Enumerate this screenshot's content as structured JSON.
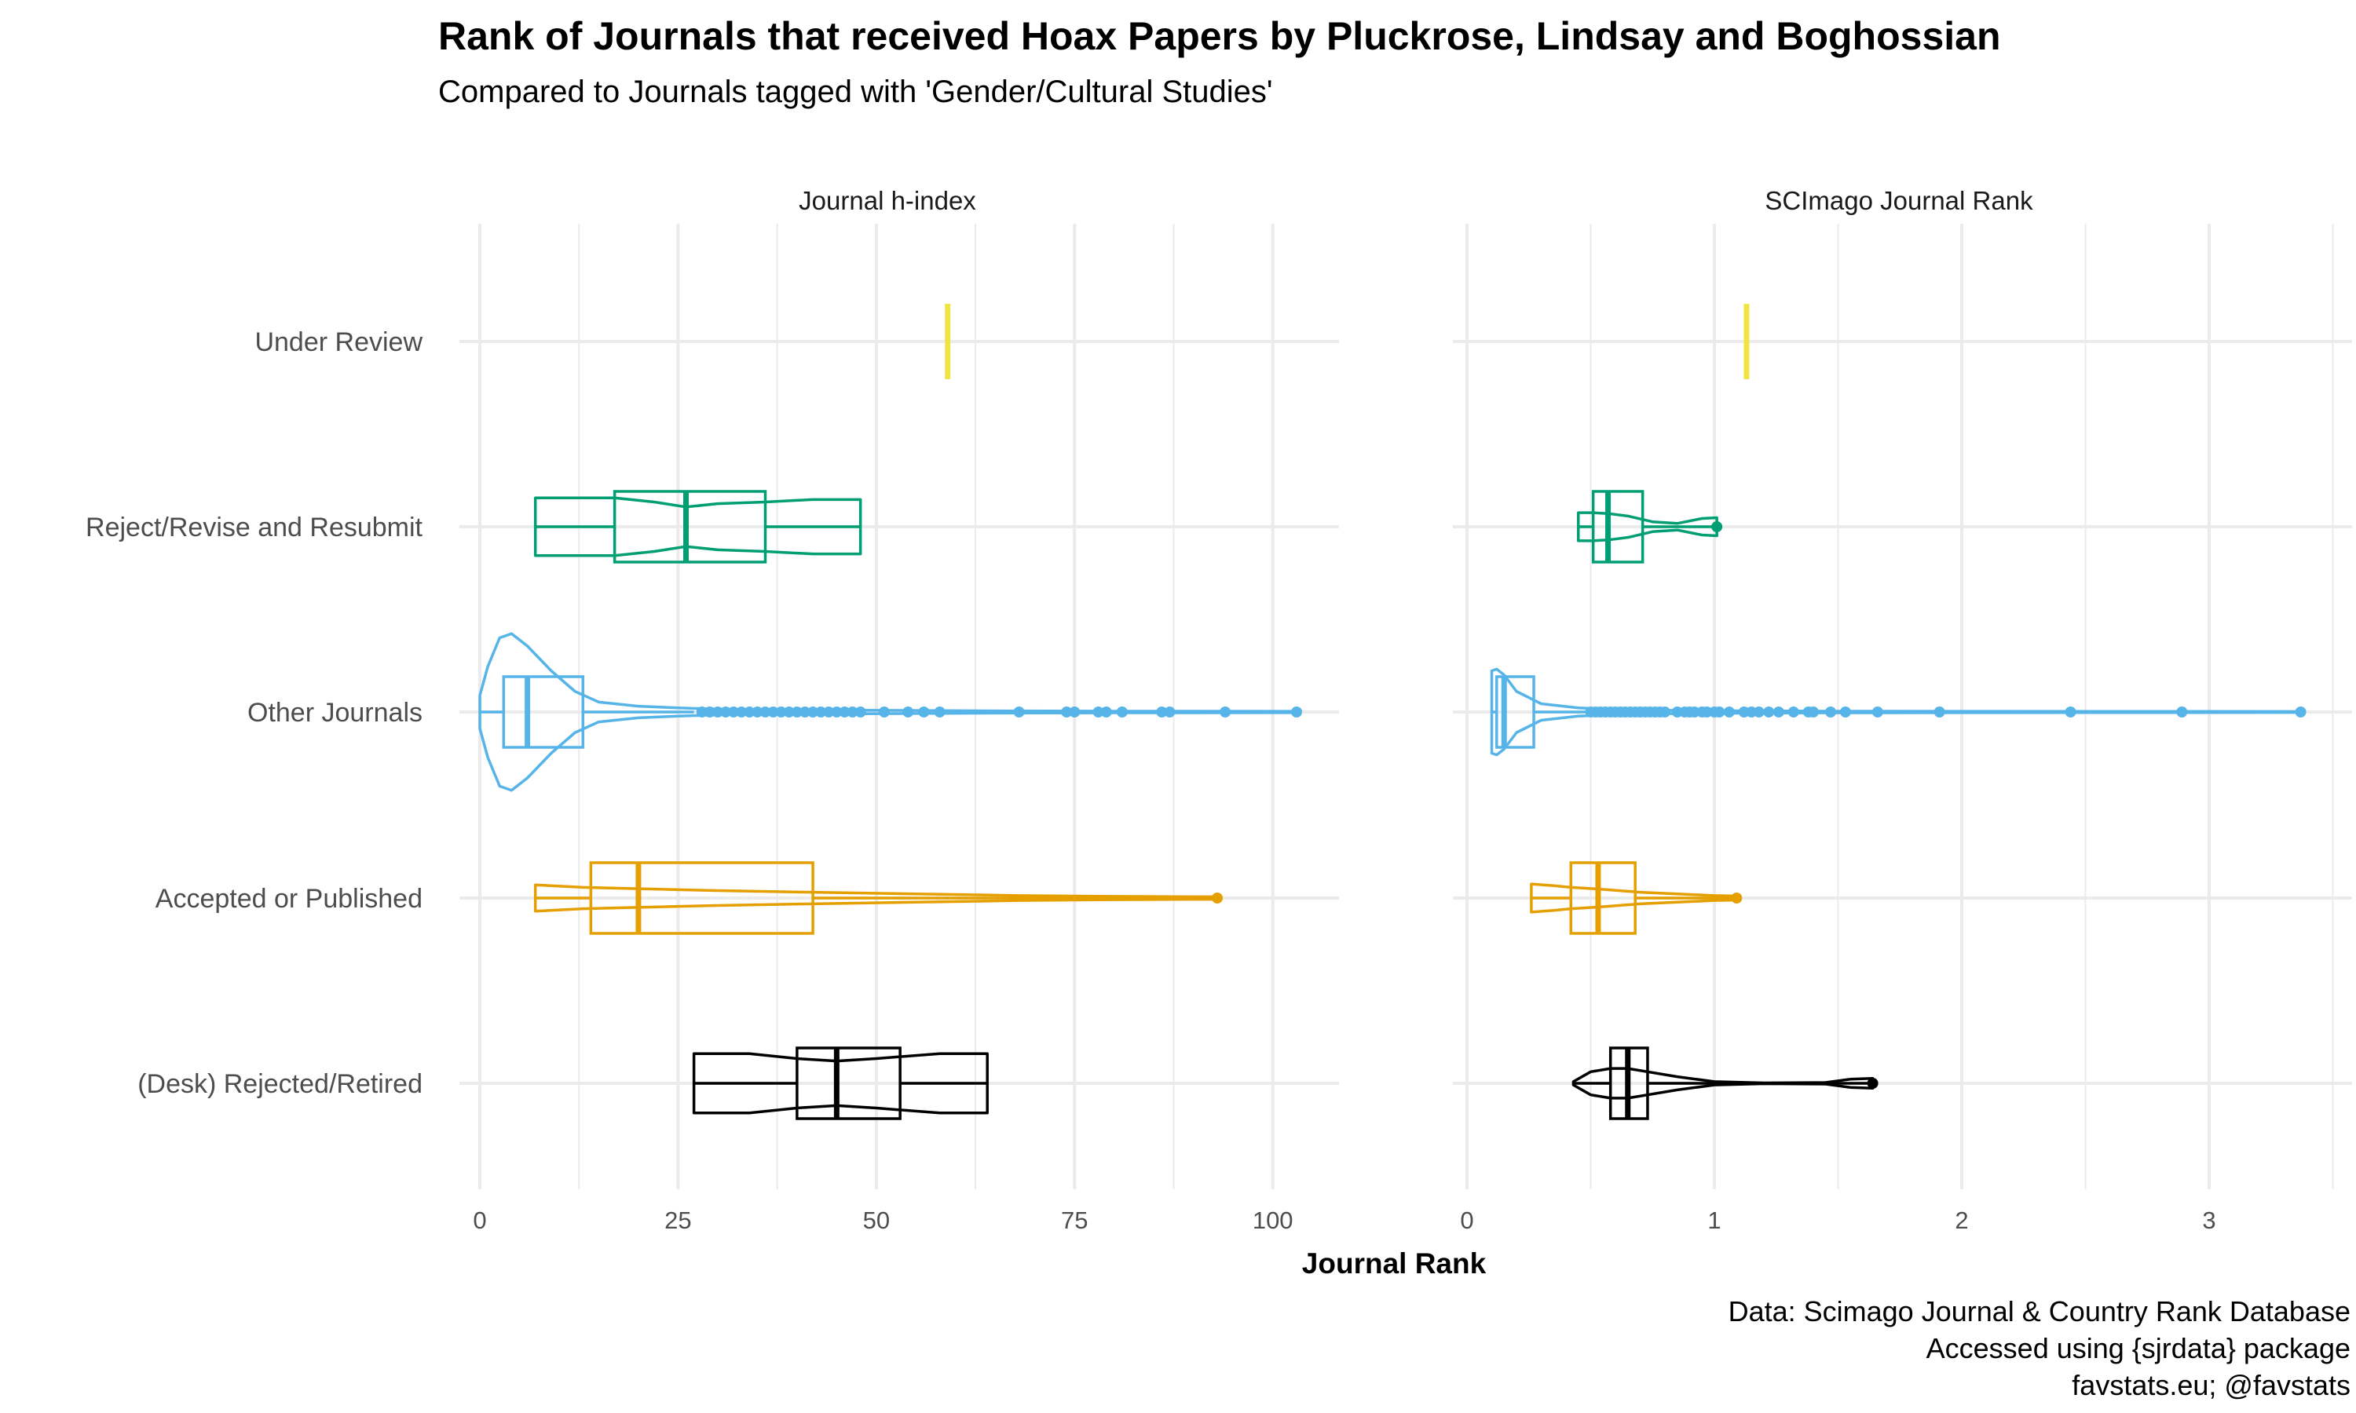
{
  "title": "Rank of Journals that received Hoax Papers by Pluckrose, Lindsay and Boghossian",
  "subtitle": "Compared to Journals tagged with 'Gender/Cultural Studies'",
  "xlabel": "Journal Rank",
  "caption": [
    "Data: Scimago Journal & Country Rank Database",
    "Accessed using {sjrdata} package",
    "favstats.eu; @favstats"
  ],
  "colors": {
    "Under Review": "#F0E442",
    "Reject/Revise and Resubmit": "#009E73",
    "Other Journals": "#56B4E9",
    "Accepted or Published": "#E69F00",
    "(Desk) Rejected/Retired": "#000000"
  },
  "chart_data": [
    {
      "type": "violin+box",
      "panel": "Journal h-index",
      "categories": [
        "Under Review",
        "Reject/Revise and Resubmit",
        "Other Journals",
        "Accepted or Published",
        "(Desk) Rejected/Retired"
      ],
      "xlim": [
        0,
        103
      ],
      "xticks": [
        0,
        25,
        50,
        75,
        100
      ],
      "series": [
        {
          "category": "Under Review",
          "min": 59,
          "q1": 59,
          "median": 59,
          "q3": 59,
          "max": 59,
          "outliers": [],
          "violin": [
            [
              59,
              1
            ]
          ]
        },
        {
          "category": "Reject/Revise and Resubmit",
          "min": 7,
          "q1": 17,
          "median": 26,
          "q3": 36,
          "max": 48,
          "outliers": [],
          "violin": [
            [
              7,
              0.35
            ],
            [
              17,
              0.35
            ],
            [
              22,
              0.3
            ],
            [
              26,
              0.24
            ],
            [
              30,
              0.28
            ],
            [
              36,
              0.3
            ],
            [
              42,
              0.33
            ],
            [
              48,
              0.33
            ]
          ]
        },
        {
          "category": "Other Journals",
          "min": 0,
          "q1": 3,
          "median": 6,
          "q3": 13,
          "max": 27,
          "outliers": [
            28,
            29,
            30,
            31,
            32,
            33,
            34,
            35,
            36,
            37,
            38,
            39,
            40,
            41,
            42,
            43,
            44,
            45,
            46,
            47,
            48,
            51,
            54,
            56,
            58,
            68,
            74,
            75,
            78,
            79,
            81,
            86,
            87,
            94,
            103
          ],
          "violin": [
            [
              0,
              0.2
            ],
            [
              1,
              0.55
            ],
            [
              2.5,
              0.9
            ],
            [
              4,
              0.95
            ],
            [
              6,
              0.8
            ],
            [
              9,
              0.5
            ],
            [
              12,
              0.25
            ],
            [
              15,
              0.12
            ],
            [
              20,
              0.07
            ],
            [
              25,
              0.05
            ],
            [
              30,
              0.035
            ],
            [
              40,
              0.025
            ],
            [
              60,
              0.015
            ],
            [
              80,
              0.01
            ],
            [
              103,
              0.008
            ]
          ]
        },
        {
          "category": "Accepted or Published",
          "min": 7,
          "q1": 14,
          "median": 20,
          "q3": 42,
          "max": 93,
          "outliers": [],
          "violin": [
            [
              7,
              0.16
            ],
            [
              13,
              0.13
            ],
            [
              30,
              0.09
            ],
            [
              42,
              0.07
            ],
            [
              55,
              0.05
            ],
            [
              68,
              0.03
            ],
            [
              80,
              0.02
            ],
            [
              90,
              0.015
            ],
            [
              93,
              0.015
            ]
          ]
        },
        {
          "category": "(Desk) Rejected/Retired",
          "min": 27,
          "q1": 40,
          "median": 45,
          "q3": 53,
          "max": 64,
          "outliers": [],
          "violin": [
            [
              27,
              0.36
            ],
            [
              34,
              0.36
            ],
            [
              40,
              0.3
            ],
            [
              45,
              0.27
            ],
            [
              50,
              0.3
            ],
            [
              58,
              0.36
            ],
            [
              64,
              0.36
            ]
          ]
        }
      ]
    },
    {
      "type": "violin+box",
      "panel": "SCImago Journal Rank",
      "categories": [
        "Under Review",
        "Reject/Revise and Resubmit",
        "Other Journals",
        "Accepted or Published",
        "(Desk) Rejected/Retired"
      ],
      "xlim": [
        0,
        3.4
      ],
      "xticks": [
        0,
        1,
        2,
        3
      ],
      "series": [
        {
          "category": "Under Review",
          "min": 1.13,
          "q1": 1.13,
          "median": 1.13,
          "q3": 1.13,
          "max": 1.13,
          "outliers": [],
          "violin": [
            [
              1.13,
              1
            ]
          ]
        },
        {
          "category": "Reject/Revise and Resubmit",
          "min": 0.45,
          "q1": 0.51,
          "median": 0.57,
          "q3": 0.71,
          "max": 1.01,
          "outliers": [],
          "violin": [
            [
              0.45,
              0.17
            ],
            [
              0.51,
              0.17
            ],
            [
              0.57,
              0.16
            ],
            [
              0.65,
              0.13
            ],
            [
              0.75,
              0.06
            ],
            [
              0.85,
              0.04
            ],
            [
              0.95,
              0.1
            ],
            [
              1.01,
              0.11
            ]
          ]
        },
        {
          "category": "Other Journals",
          "min": 0.1,
          "q1": 0.12,
          "median": 0.15,
          "q3": 0.27,
          "max": 0.48,
          "outliers": [
            0.5,
            0.52,
            0.54,
            0.56,
            0.58,
            0.6,
            0.62,
            0.64,
            0.66,
            0.68,
            0.7,
            0.72,
            0.74,
            0.76,
            0.78,
            0.8,
            0.85,
            0.88,
            0.9,
            0.92,
            0.95,
            0.97,
            1.0,
            1.02,
            1.06,
            1.12,
            1.15,
            1.18,
            1.22,
            1.26,
            1.32,
            1.38,
            1.4,
            1.47,
            1.53,
            1.66,
            1.91,
            2.44,
            2.89,
            3.37
          ],
          "violin": [
            [
              0.1,
              0.5
            ],
            [
              0.12,
              0.52
            ],
            [
              0.15,
              0.45
            ],
            [
              0.2,
              0.25
            ],
            [
              0.3,
              0.1
            ],
            [
              0.45,
              0.05
            ],
            [
              0.6,
              0.03
            ],
            [
              0.8,
              0.02
            ],
            [
              1.0,
              0.015
            ],
            [
              1.5,
              0.01
            ],
            [
              2.0,
              0.008
            ],
            [
              3.37,
              0.006
            ]
          ]
        },
        {
          "category": "Accepted or Published",
          "min": 0.26,
          "q1": 0.42,
          "median": 0.53,
          "q3": 0.68,
          "max": 1.09,
          "outliers": [],
          "violin": [
            [
              0.26,
              0.17
            ],
            [
              0.35,
              0.15
            ],
            [
              0.42,
              0.13
            ],
            [
              0.53,
              0.11
            ],
            [
              0.7,
              0.07
            ],
            [
              0.85,
              0.05
            ],
            [
              1.0,
              0.03
            ],
            [
              1.09,
              0.025
            ]
          ]
        },
        {
          "category": "(Desk) Rejected/Retired",
          "min": 0.43,
          "q1": 0.58,
          "median": 0.65,
          "q3": 0.73,
          "max": 1.64,
          "outliers": [],
          "violin": [
            [
              0.43,
              0.02
            ],
            [
              0.5,
              0.14
            ],
            [
              0.58,
              0.18
            ],
            [
              0.65,
              0.18
            ],
            [
              0.73,
              0.14
            ],
            [
              0.85,
              0.08
            ],
            [
              1.0,
              0.02
            ],
            [
              1.2,
              0.005
            ],
            [
              1.45,
              0.01
            ],
            [
              1.55,
              0.05
            ],
            [
              1.64,
              0.06
            ]
          ]
        }
      ]
    }
  ]
}
